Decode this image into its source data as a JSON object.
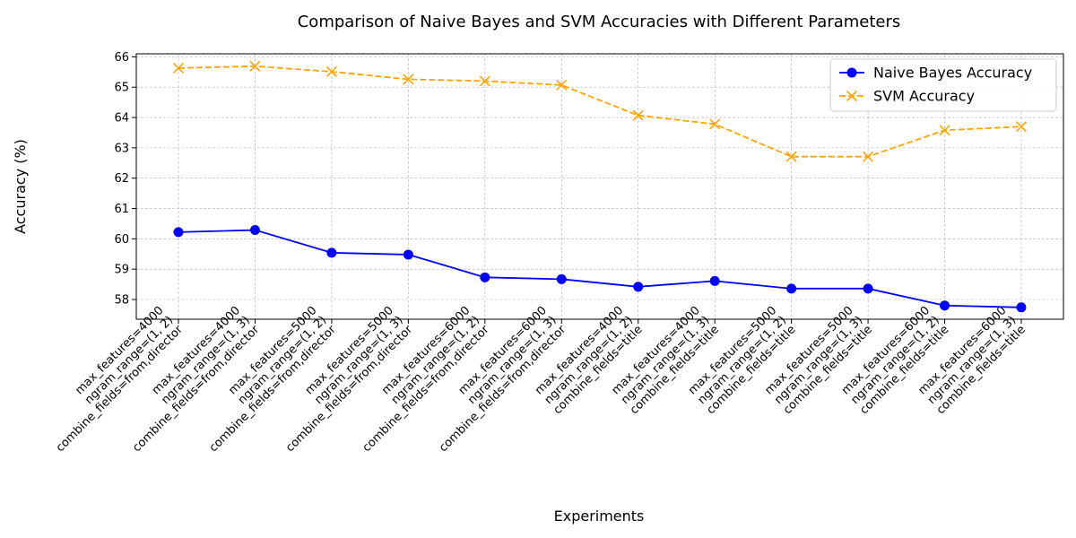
{
  "chart_data": {
    "type": "line",
    "title": "Comparison of Naive Bayes and SVM Accuracies with Different Parameters",
    "xlabel": "Experiments",
    "ylabel": "Accuracy (%)",
    "ylim": [
      57.35,
      66.1
    ],
    "yticks": [
      58,
      59,
      60,
      61,
      62,
      63,
      64,
      65,
      66
    ],
    "grid": true,
    "legend_position": "top-right",
    "categories": [
      [
        "max_features=4000",
        "ngram_range=(1, 2)",
        "combine_fields=from,director"
      ],
      [
        "max_features=4000",
        "ngram_range=(1, 3)",
        "combine_fields=from,director"
      ],
      [
        "max_features=5000",
        "ngram_range=(1, 2)",
        "combine_fields=from,director"
      ],
      [
        "max_features=5000",
        "ngram_range=(1, 3)",
        "combine_fields=from,director"
      ],
      [
        "max_features=6000",
        "ngram_range=(1, 2)",
        "combine_fields=from,director"
      ],
      [
        "max_features=6000",
        "ngram_range=(1, 3)",
        "combine_fields=from,director"
      ],
      [
        "max_features=4000",
        "ngram_range=(1, 2)",
        "combine_fields=title"
      ],
      [
        "max_features=4000",
        "ngram_range=(1, 3)",
        "combine_fields=title"
      ],
      [
        "max_features=5000",
        "ngram_range=(1, 2)",
        "combine_fields=title"
      ],
      [
        "max_features=5000",
        "ngram_range=(1, 3)",
        "combine_fields=title"
      ],
      [
        "max_features=6000",
        "ngram_range=(1, 2)",
        "combine_fields=title"
      ],
      [
        "max_features=6000",
        "ngram_range=(1, 3)",
        "combine_fields=title"
      ]
    ],
    "series": [
      {
        "name": "Naive Bayes Accuracy",
        "color": "#0000ff",
        "marker": "circle",
        "line_style": "solid",
        "values": [
          60.22,
          60.29,
          59.54,
          59.48,
          58.73,
          58.67,
          58.42,
          58.61,
          58.36,
          58.36,
          57.8,
          57.74
        ]
      },
      {
        "name": "SVM Accuracy",
        "color": "#ffa500",
        "marker": "x",
        "line_style": "dashed",
        "values": [
          65.63,
          65.69,
          65.51,
          65.26,
          65.2,
          65.07,
          64.07,
          63.78,
          62.71,
          62.71,
          63.58,
          63.7
        ]
      }
    ]
  }
}
